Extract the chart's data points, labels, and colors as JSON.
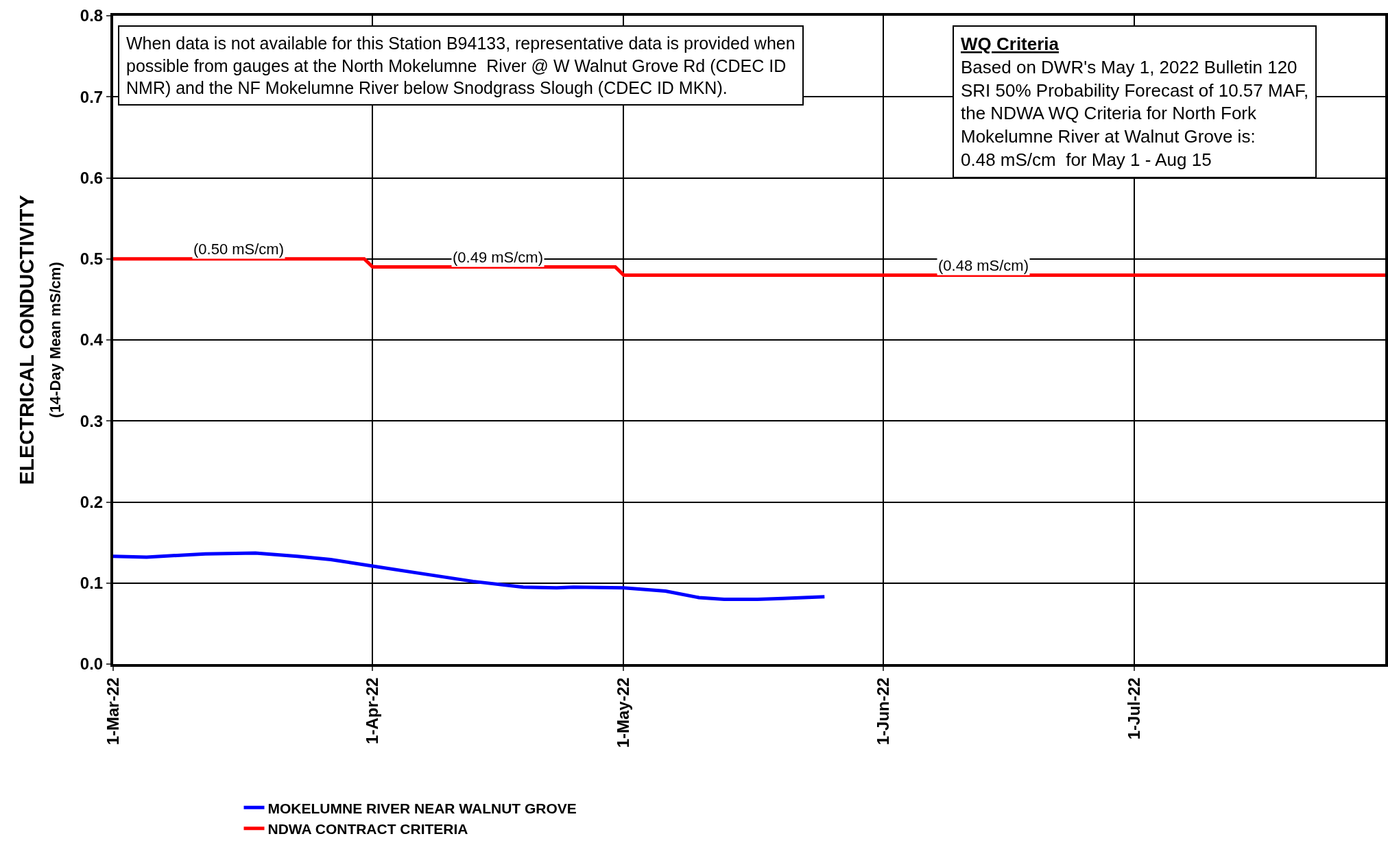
{
  "chart_data": {
    "type": "line",
    "ylabel": "ELECTRICAL CONDUCTIVITY\n(14-Day Mean mS/cm)",
    "xlim": [
      "2022-03-01",
      "2022-07-31"
    ],
    "xticks": [
      {
        "value": "2022-03-01",
        "label": "1-Mar-22"
      },
      {
        "value": "2022-04-01",
        "label": "1-Apr-22"
      },
      {
        "value": "2022-05-01",
        "label": "1-May-22"
      },
      {
        "value": "2022-06-01",
        "label": "1-Jun-22"
      },
      {
        "value": "2022-07-01",
        "label": "1-Jul-22"
      }
    ],
    "ylim": [
      0,
      0.8
    ],
    "yticks": [
      {
        "value": 0,
        "label": "0.0"
      },
      0.1,
      0.2,
      0.3,
      0.4,
      0.5,
      0.6,
      0.7,
      0.8
    ],
    "grid": true,
    "legend": "bottom",
    "marker": "none",
    "line_style": "solid",
    "series": [
      {
        "name": "MOKELUMNE RIVER NEAR WALNUT GROVE",
        "color": "#0000ff",
        "x": [
          "2022-03-01",
          "2022-03-05",
          "2022-03-12",
          "2022-03-18",
          "2022-03-23",
          "2022-03-27",
          "2022-04-01",
          "2022-04-06",
          "2022-04-13",
          "2022-04-19",
          "2022-04-23",
          "2022-04-25",
          "2022-05-01",
          "2022-05-06",
          "2022-05-10",
          "2022-05-13",
          "2022-05-17",
          "2022-05-20",
          "2022-05-25"
        ],
        "values": [
          0.133,
          0.132,
          0.136,
          0.137,
          0.133,
          0.129,
          0.121,
          0.113,
          0.102,
          0.095,
          0.094,
          0.095,
          0.094,
          0.09,
          0.082,
          0.08,
          0.08,
          0.081,
          0.083
        ]
      },
      {
        "name": "NDWA CONTRACT CRITERIA",
        "color": "#ff0000",
        "x": [
          "2022-03-01",
          "2022-03-31",
          "2022-04-01",
          "2022-04-30",
          "2022-05-01",
          "2022-07-31"
        ],
        "values": [
          0.5,
          0.5,
          0.49,
          0.49,
          0.48,
          0.48
        ]
      }
    ],
    "annotations": [
      {
        "text": "(0.50 mS/cm)",
        "x": "2022-03-16",
        "y": 0.5
      },
      {
        "text": "(0.49 mS/cm)",
        "x": "2022-04-16",
        "y": 0.49
      },
      {
        "text": "(0.48 mS/cm)",
        "x": "2022-06-13",
        "y": 0.48
      },
      "When data is not available for this Station B94133, representative data is provided when\npossible from gauges at the North Mokelumne  River @ W Walnut Grove Rd (CDEC ID\nNMR) and the NF Mokelumne River below Snodgrass Slough (CDEC ID MKN).",
      "WQ Criteria\nBased on DWR's May 1, 2022 Bulletin 120\nSRI 50% Probability Forecast of 10.57 MAF,\nthe NDWA WQ Criteria for North Fork\nMokelumne River at Walnut Grove is:\n0.48 mS/cm  for May 1 - Aug 15"
    ]
  }
}
